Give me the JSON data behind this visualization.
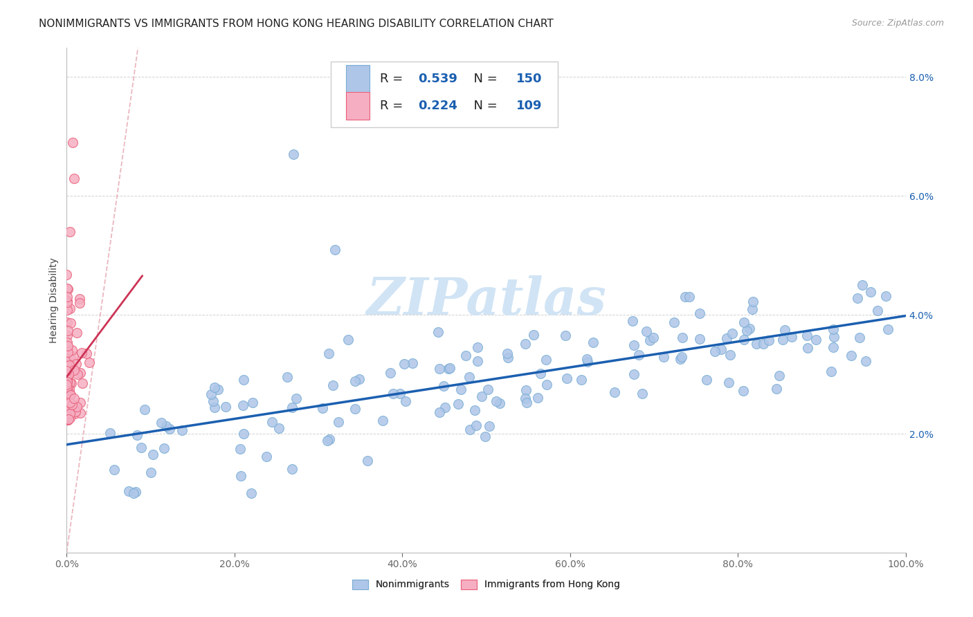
{
  "title": "NONIMMIGRANTS VS IMMIGRANTS FROM HONG KONG HEARING DISABILITY CORRELATION CHART",
  "source": "Source: ZipAtlas.com",
  "ylabel": "Hearing Disability",
  "xlim": [
    0.0,
    1.0
  ],
  "ylim": [
    0.0,
    0.085
  ],
  "yticks": [
    0.02,
    0.04,
    0.06,
    0.08
  ],
  "ytick_labels": [
    "2.0%",
    "4.0%",
    "6.0%",
    "8.0%"
  ],
  "xticks": [
    0.0,
    0.2,
    0.4,
    0.6,
    0.8,
    1.0
  ],
  "xtick_labels": [
    "0.0%",
    "20.0%",
    "40.0%",
    "60.0%",
    "80.0%",
    "100.0%"
  ],
  "nonimm_R": 0.539,
  "nonimm_N": 150,
  "imm_R": 0.224,
  "imm_N": 109,
  "nonimm_color": "#aec6e8",
  "nonimm_edge": "#7aadd4",
  "imm_color": "#f5aec2",
  "imm_edge": "#e8607a",
  "trend_nonimm_color": "#1a5fb0",
  "trend_imm_color": "#cc3355",
  "diagonal_color": "#e8b0b8",
  "background_color": "#ffffff",
  "watermark_color": "#d0e4f5",
  "title_fontsize": 11,
  "legend_fontsize": 13,
  "tick_fontsize": 10
}
